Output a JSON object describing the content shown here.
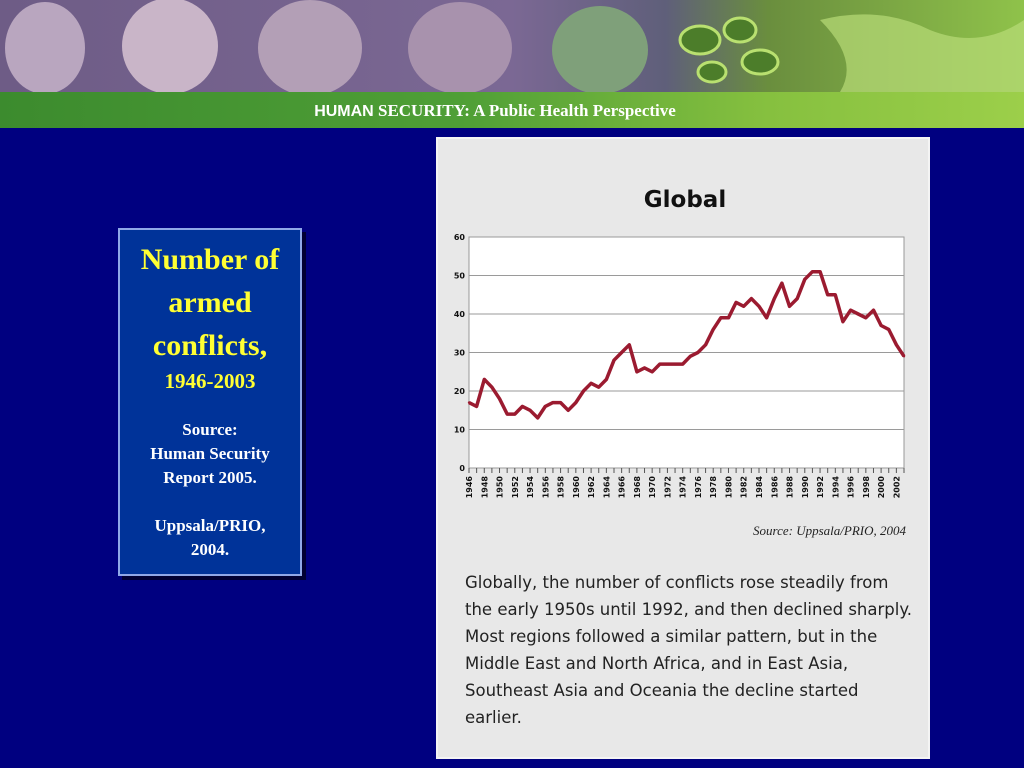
{
  "header": {
    "title_strong": "HUMAN",
    "title_rest": " SECURITY: A Public Health Perspective"
  },
  "side_box": {
    "heading": "Number of armed conflicts,",
    "years": "1946-2003",
    "source_label": "Source:",
    "source_report": "Human Security Report 2005.",
    "source_data": "Uppsala/PRIO, 2004."
  },
  "colors": {
    "background": "#000080",
    "box": "#003399",
    "heading": "#ffff33",
    "line": "#9b1b30"
  },
  "chart_data": {
    "type": "line",
    "title": "Global",
    "source": "Source: Uppsala/PRIO, 2004",
    "xlabel": "",
    "ylabel": "",
    "xlim": [
      1946,
      2003
    ],
    "ylim": [
      0,
      60
    ],
    "y_ticks": [
      "0",
      "10",
      "20",
      "30",
      "40",
      "50",
      "60"
    ],
    "y_tick_values": [
      0,
      10,
      20,
      30,
      40,
      50,
      60
    ],
    "x_ticks": [
      "1946",
      "1948",
      "1950",
      "1952",
      "1954",
      "1956",
      "1958",
      "1960",
      "1962",
      "1964",
      "1966",
      "1968",
      "1970",
      "1972",
      "1974",
      "1976",
      "1978",
      "1980",
      "1982",
      "1984",
      "1986",
      "1988",
      "1990",
      "1992",
      "1994",
      "1996",
      "1998",
      "2000",
      "2002"
    ],
    "grid": true,
    "x": [
      1946,
      1947,
      1948,
      1949,
      1950,
      1951,
      1952,
      1953,
      1954,
      1955,
      1956,
      1957,
      1958,
      1959,
      1960,
      1961,
      1962,
      1963,
      1964,
      1965,
      1966,
      1967,
      1968,
      1969,
      1970,
      1971,
      1972,
      1973,
      1974,
      1975,
      1976,
      1977,
      1978,
      1979,
      1980,
      1981,
      1982,
      1983,
      1984,
      1985,
      1986,
      1987,
      1988,
      1989,
      1990,
      1991,
      1992,
      1993,
      1994,
      1995,
      1996,
      1997,
      1998,
      1999,
      2000,
      2001,
      2002,
      2003
    ],
    "values": [
      17,
      16,
      23,
      21,
      18,
      14,
      14,
      16,
      15,
      13,
      16,
      17,
      17,
      15,
      17,
      20,
      22,
      21,
      23,
      28,
      30,
      32,
      25,
      26,
      25,
      27,
      27,
      27,
      27,
      29,
      30,
      32,
      36,
      39,
      39,
      43,
      42,
      44,
      42,
      39,
      44,
      48,
      42,
      44,
      49,
      51,
      51,
      45,
      45,
      38,
      41,
      40,
      39,
      41,
      37,
      36,
      32,
      29
    ]
  },
  "caption": "Globally, the number of conflicts rose steadily from the early 1950s until 1992, and then declined sharply. Most regions followed a similar pattern, but in the Middle East and North Africa, and in East Asia, Southeast Asia and Oceania the decline started earlier."
}
